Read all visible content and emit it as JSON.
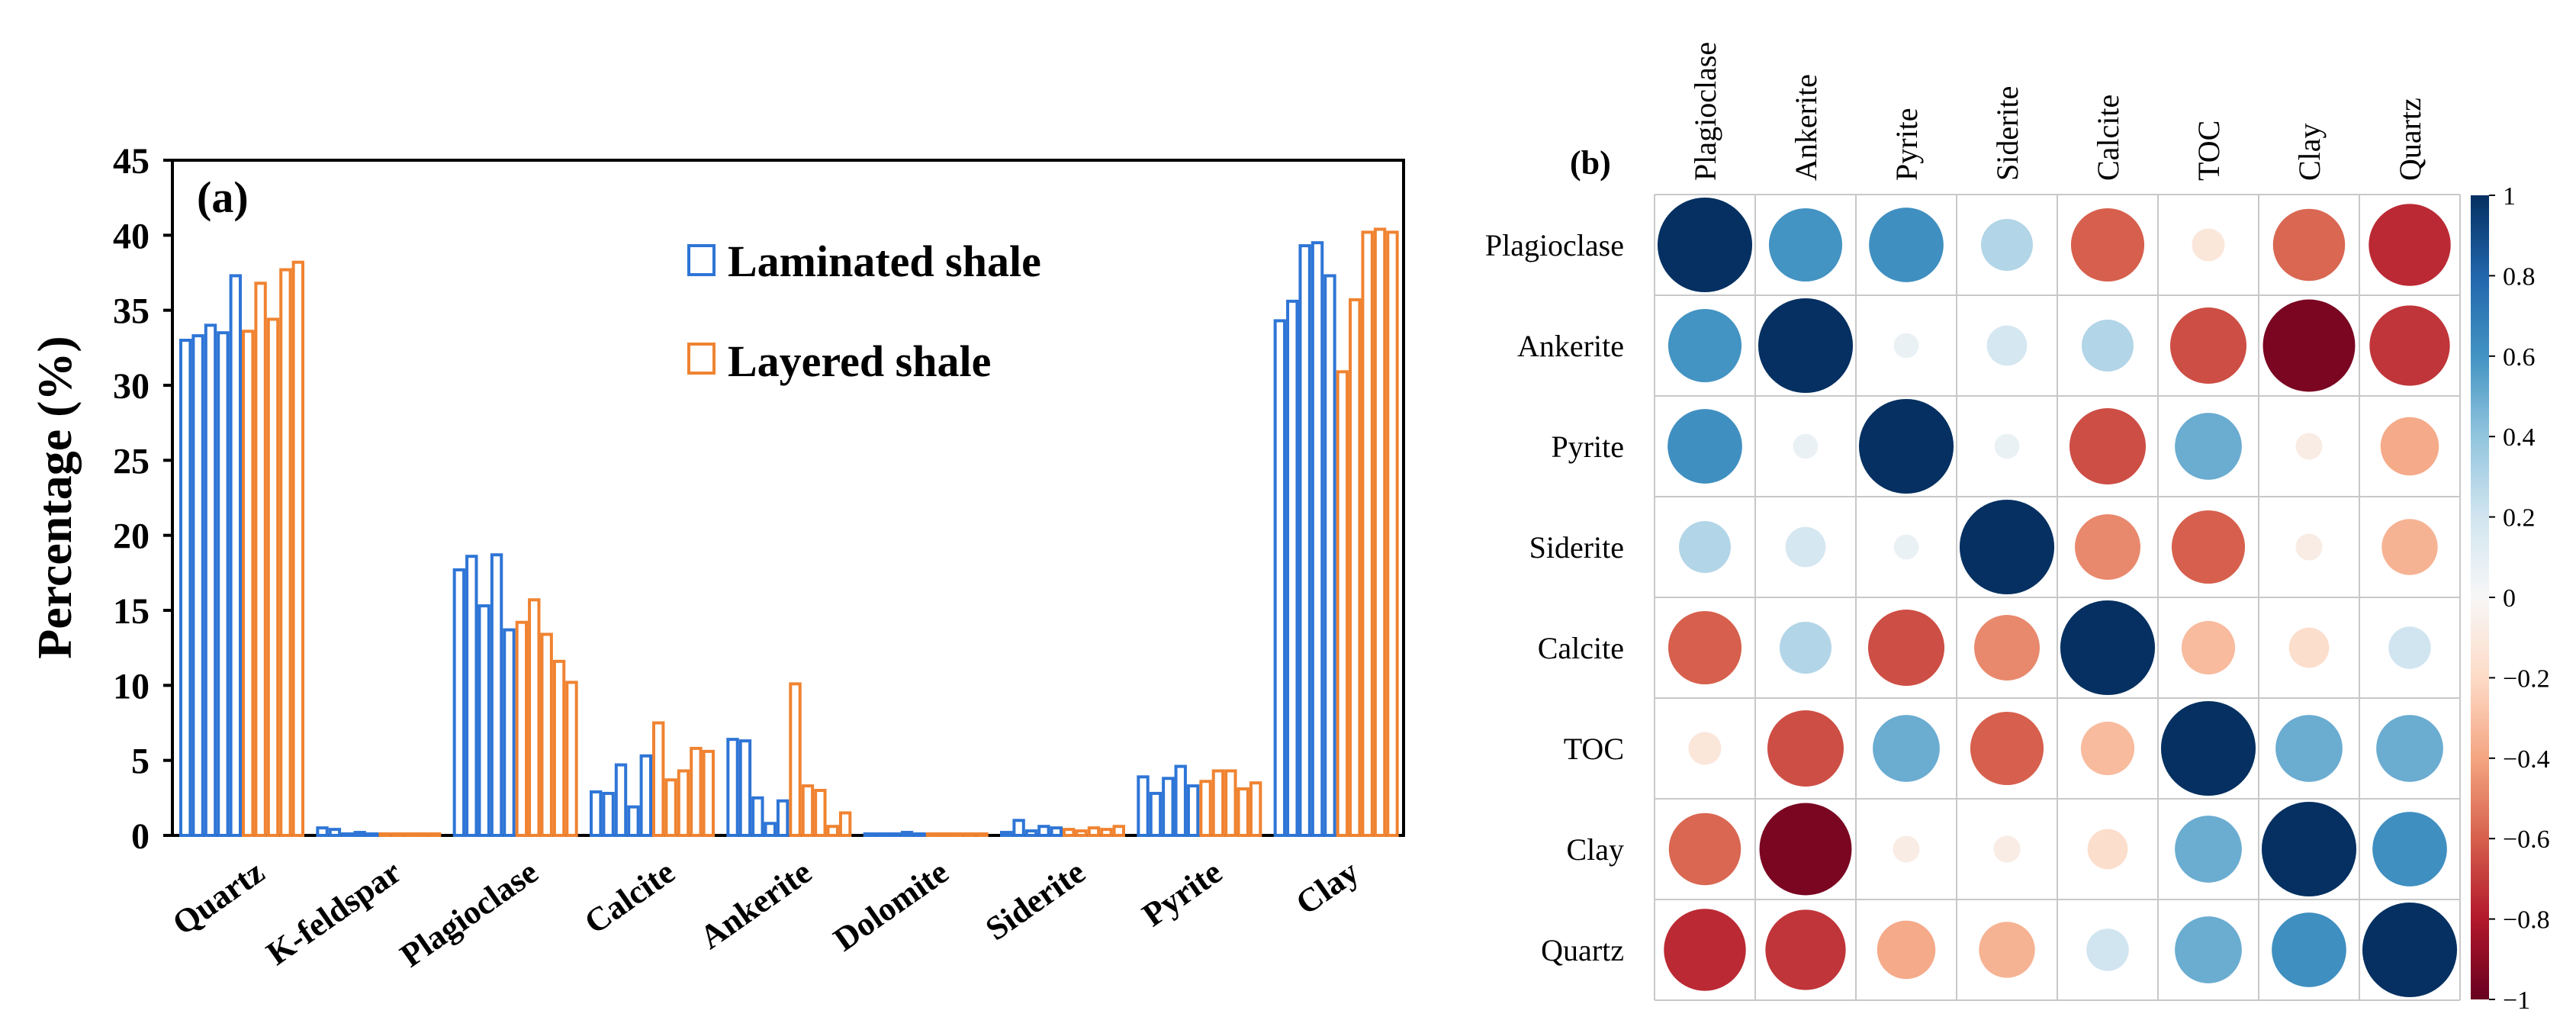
{
  "chart_data": [
    {
      "type": "bar",
      "panel_label": "(a)",
      "ylabel": "Percentage  (%)",
      "ylim": [
        0,
        45
      ],
      "yticks": [
        "0",
        "5",
        "10",
        "15",
        "20",
        "25",
        "30",
        "35",
        "40",
        "45"
      ],
      "categories": [
        "Quartz",
        "K-feldspar",
        "Plagioclase",
        "Calcite",
        "Ankerite",
        "Dolomite",
        "Siderite",
        "Pyrite",
        "Clay"
      ],
      "series": [
        {
          "name": "Laminated shale",
          "color": "#2e75d6",
          "values": [
            [
              33.0,
              33.3,
              34.0,
              33.5,
              37.3
            ],
            [
              0.5,
              0.4,
              0.1,
              0.2,
              0.1
            ],
            [
              17.7,
              18.6,
              15.3,
              18.7,
              13.7
            ],
            [
              2.9,
              2.8,
              4.7,
              1.9,
              5.3
            ],
            [
              6.4,
              6.3,
              2.5,
              0.8,
              2.3
            ],
            [
              0.1,
              0.1,
              0.1,
              0.2,
              0.1
            ],
            [
              0.2,
              1.0,
              0.3,
              0.6,
              0.5
            ],
            [
              3.9,
              2.8,
              3.8,
              4.6,
              3.3
            ],
            [
              34.3,
              35.6,
              39.3,
              39.5,
              37.3
            ]
          ]
        },
        {
          "name": "Layered shale",
          "color": "#f08331",
          "values": [
            [
              33.6,
              36.8,
              34.4,
              37.7,
              38.2
            ],
            [
              0.1,
              0.1,
              0.1,
              0.1,
              0.1
            ],
            [
              14.2,
              15.7,
              13.4,
              11.6,
              10.2
            ],
            [
              7.5,
              3.7,
              4.3,
              5.8,
              5.6
            ],
            [
              10.1,
              3.3,
              3.0,
              0.6,
              1.5
            ],
            [
              0.1,
              0.1,
              0.1,
              0.1,
              0.1
            ],
            [
              0.4,
              0.3,
              0.5,
              0.4,
              0.6
            ],
            [
              3.6,
              4.3,
              4.3,
              3.1,
              3.5
            ],
            [
              30.9,
              35.7,
              40.2,
              40.4,
              40.2
            ]
          ]
        }
      ]
    },
    {
      "type": "heatmap",
      "panel_label": "(b)",
      "columns": [
        "Plagioclase",
        "Ankerite",
        "Pyrite",
        "Siderite",
        "Calcite",
        "TOC",
        "Clay",
        "Quartz"
      ],
      "rows": [
        "Plagioclase",
        "Ankerite",
        "Pyrite",
        "Siderite",
        "Calcite",
        "TOC",
        "Clay",
        "Quartz"
      ],
      "values": [
        [
          1.0,
          0.6,
          0.62,
          0.3,
          -0.6,
          -0.12,
          -0.58,
          -0.75
        ],
        [
          0.6,
          1.0,
          0.07,
          0.18,
          0.3,
          -0.65,
          -0.95,
          -0.72
        ],
        [
          0.62,
          0.07,
          1.0,
          0.07,
          -0.65,
          0.5,
          -0.08,
          -0.38
        ],
        [
          0.3,
          0.18,
          0.07,
          1.0,
          -0.48,
          -0.6,
          -0.08,
          -0.35
        ],
        [
          -0.6,
          0.3,
          -0.65,
          -0.48,
          1.0,
          -0.32,
          -0.18,
          0.2
        ],
        [
          -0.12,
          -0.65,
          0.5,
          -0.6,
          -0.32,
          1.0,
          0.5,
          0.5
        ],
        [
          -0.58,
          -0.95,
          -0.08,
          -0.08,
          -0.18,
          0.5,
          1.0,
          0.62
        ],
        [
          -0.75,
          -0.72,
          -0.38,
          -0.35,
          0.2,
          0.5,
          0.62,
          1.0
        ]
      ],
      "colorbar": {
        "range": [
          -1,
          1
        ],
        "ticks": [
          "1",
          "0.8",
          "0.6",
          "0.4",
          "0.2",
          "0",
          "−0.2",
          "−0.4",
          "−0.6",
          "−0.8",
          "−1"
        ],
        "colors_top_to_bottom": [
          "#053061",
          "#2166ac",
          "#4393c3",
          "#92c5de",
          "#d1e5f0",
          "#f7f7f7",
          "#fddbc7",
          "#f4a582",
          "#d6604d",
          "#b2182b",
          "#67001f"
        ]
      }
    }
  ]
}
